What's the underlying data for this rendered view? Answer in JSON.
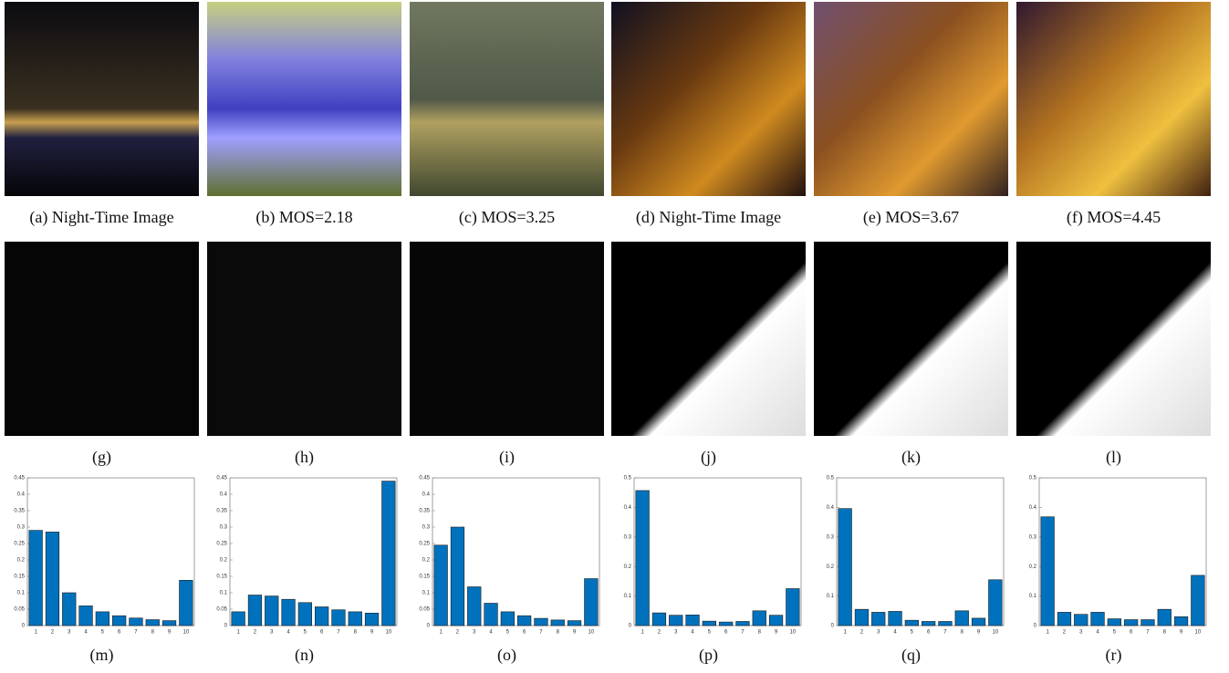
{
  "figure": {
    "row1": [
      "(a) Night-Time Image",
      "(b) MOS=2.18",
      "(c) MOS=3.25",
      "(d) Night-Time Image",
      "(e) MOS=3.67",
      "(f) MOS=4.45"
    ],
    "row2": [
      "(g)",
      "(h)",
      "(i)",
      "(j)",
      "(k)",
      "(l)"
    ]
  },
  "chart_data": [
    {
      "type": "bar",
      "caption": "(m)",
      "categories": [
        "1",
        "2",
        "3",
        "4",
        "5",
        "6",
        "7",
        "8",
        "9",
        "10"
      ],
      "values": [
        0.29,
        0.285,
        0.1,
        0.06,
        0.042,
        0.03,
        0.023,
        0.018,
        0.015,
        0.138
      ],
      "color": "#0072bd",
      "ylim": [
        0,
        0.45
      ],
      "yticks": [
        0,
        0.05,
        0.1,
        0.15,
        0.2,
        0.25,
        0.3,
        0.35,
        0.4,
        0.45
      ]
    },
    {
      "type": "bar",
      "caption": "(n)",
      "categories": [
        "1",
        "2",
        "3",
        "4",
        "5",
        "6",
        "7",
        "8",
        "9",
        "10"
      ],
      "values": [
        0.042,
        0.093,
        0.09,
        0.08,
        0.07,
        0.057,
        0.048,
        0.042,
        0.038,
        0.44
      ],
      "color": "#0072bd",
      "ylim": [
        0,
        0.45
      ],
      "yticks": [
        0,
        0.05,
        0.1,
        0.15,
        0.2,
        0.25,
        0.3,
        0.35,
        0.4,
        0.45
      ]
    },
    {
      "type": "bar",
      "caption": "(o)",
      "categories": [
        "1",
        "2",
        "3",
        "4",
        "5",
        "6",
        "7",
        "8",
        "9",
        "10"
      ],
      "values": [
        0.245,
        0.3,
        0.118,
        0.068,
        0.042,
        0.03,
        0.022,
        0.017,
        0.015,
        0.143
      ],
      "color": "#0072bd",
      "ylim": [
        0,
        0.45
      ],
      "yticks": [
        0,
        0.05,
        0.1,
        0.15,
        0.2,
        0.25,
        0.3,
        0.35,
        0.4,
        0.45
      ]
    },
    {
      "type": "bar",
      "caption": "(p)",
      "categories": [
        "1",
        "2",
        "3",
        "4",
        "5",
        "6",
        "7",
        "8",
        "9",
        "10"
      ],
      "values": [
        0.457,
        0.043,
        0.035,
        0.036,
        0.015,
        0.012,
        0.014,
        0.05,
        0.035,
        0.125
      ],
      "color": "#0072bd",
      "ylim": [
        0,
        0.5
      ],
      "yticks": [
        0,
        0.1,
        0.2,
        0.3,
        0.4,
        0.5
      ]
    },
    {
      "type": "bar",
      "caption": "(q)",
      "categories": [
        "1",
        "2",
        "3",
        "4",
        "5",
        "6",
        "7",
        "8",
        "9",
        "10"
      ],
      "values": [
        0.396,
        0.055,
        0.045,
        0.048,
        0.018,
        0.014,
        0.014,
        0.05,
        0.025,
        0.155
      ],
      "color": "#0072bd",
      "ylim": [
        0,
        0.5
      ],
      "yticks": [
        0,
        0.1,
        0.2,
        0.3,
        0.4,
        0.5
      ]
    },
    {
      "type": "bar",
      "caption": "(r)",
      "categories": [
        "1",
        "2",
        "3",
        "4",
        "5",
        "6",
        "7",
        "8",
        "9",
        "10"
      ],
      "values": [
        0.368,
        0.045,
        0.038,
        0.045,
        0.023,
        0.02,
        0.02,
        0.055,
        0.03,
        0.17
      ],
      "color": "#0072bd",
      "ylim": [
        0,
        0.5
      ],
      "yticks": [
        0,
        0.1,
        0.2,
        0.3,
        0.4,
        0.5
      ]
    }
  ]
}
